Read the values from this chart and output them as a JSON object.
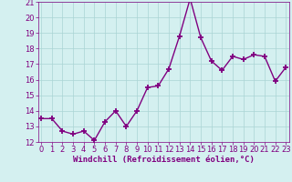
{
  "x": [
    0,
    1,
    2,
    3,
    4,
    5,
    6,
    7,
    8,
    9,
    10,
    11,
    12,
    13,
    14,
    15,
    16,
    17,
    18,
    19,
    20,
    21,
    22,
    23
  ],
  "y": [
    13.5,
    13.5,
    12.7,
    12.5,
    12.7,
    12.1,
    13.3,
    14.0,
    13.0,
    14.0,
    15.5,
    15.6,
    16.7,
    18.8,
    21.2,
    18.7,
    17.2,
    16.6,
    17.5,
    17.3,
    17.6,
    17.5,
    15.9,
    16.8
  ],
  "title": "",
  "xlabel": "Windchill (Refroidissement éolien,°C)",
  "ylabel": "",
  "ylim": [
    12,
    21
  ],
  "xlim": [
    -0.3,
    23.3
  ],
  "yticks": [
    12,
    13,
    14,
    15,
    16,
    17,
    18,
    19,
    20,
    21
  ],
  "xticks": [
    0,
    1,
    2,
    3,
    4,
    5,
    6,
    7,
    8,
    9,
    10,
    11,
    12,
    13,
    14,
    15,
    16,
    17,
    18,
    19,
    20,
    21,
    22,
    23
  ],
  "line_color": "#800080",
  "marker": "+",
  "bg_color": "#d4f0f0",
  "grid_color": "#aad4d4",
  "axis_label_color": "#800080",
  "tick_color": "#800080",
  "tick_fontsize": 6.0,
  "xlabel_fontsize": 6.5
}
